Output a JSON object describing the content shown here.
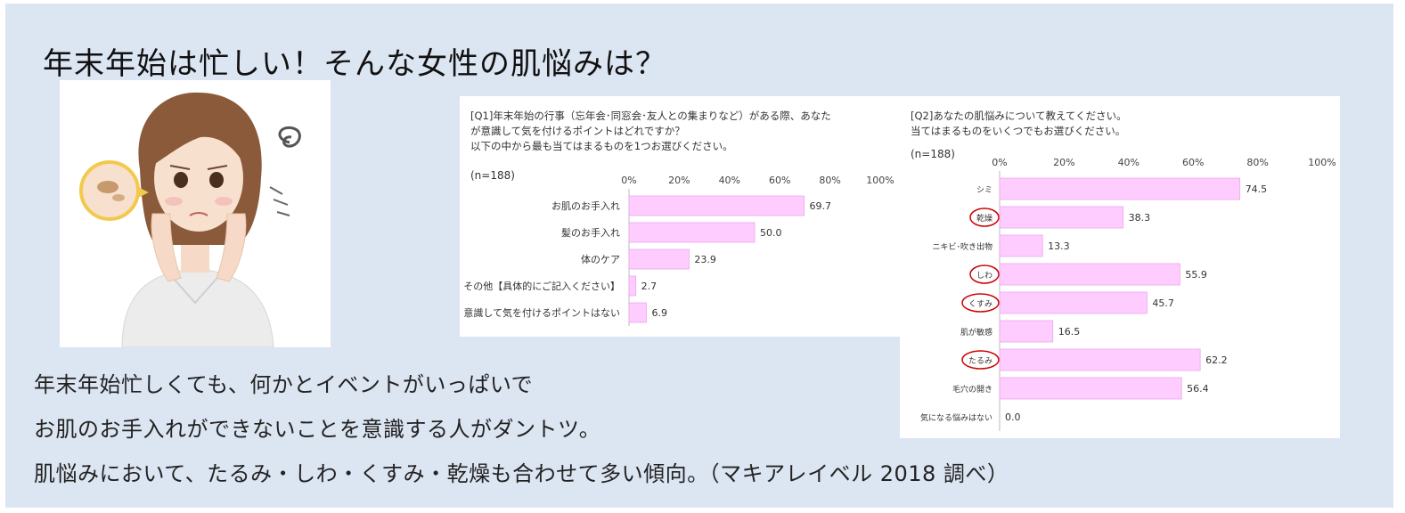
{
  "title": "年末年始は忙しい！そんな女性の肌悩みは？",
  "body_lines": [
    "年末年始忙しくても、何かとイベントがいっぱいで",
    "お肌のお手入れができないことを意識する人がダントツ。",
    "肌悩みにおいて、たるみ・しわ・くすみ・乾燥も合わせて多い傾向。（マキアレイベル 2018 調べ）"
  ],
  "colors": {
    "bar_fill": "#ffccff",
    "bar_stroke": "#e8a8e8",
    "circle": "#cc0000",
    "slide_bg": "#dce5f2"
  },
  "chart_data": [
    {
      "type": "bar",
      "orientation": "horizontal",
      "question_lines": [
        "[Q1]年末年始の行事（忘年会･同窓会･友人との集まりなど）がある際、あなた",
        "が意識して気を付けるポイントはどれですか？",
        "以下の中から最も当てはまるものを1つお選びください。"
      ],
      "n_label": "(n=188)",
      "categories": [
        "お肌のお手入れ",
        "髪のお手入れ",
        "体のケア",
        "その他【具体的にご記入ください】",
        "意識して気を付けるポイントはない"
      ],
      "values": [
        69.7,
        50.0,
        23.9,
        2.7,
        6.9
      ],
      "value_labels": [
        "69.7",
        "50.0",
        "23.9",
        "2.7",
        "6.9"
      ],
      "xlim": [
        0,
        100
      ],
      "ticks": [
        "0%",
        "20%",
        "40%",
        "60%",
        "80%",
        "100%"
      ]
    },
    {
      "type": "bar",
      "orientation": "horizontal",
      "question_lines": [
        "[Q2]あなたの肌悩みについて教えてください。",
        "当てはまるものをいくつでもお選びください。"
      ],
      "n_label": "(n=188)",
      "categories": [
        "シミ",
        "乾燥",
        "ニキビ･吹き出物",
        "しわ",
        "くすみ",
        "肌が敏感",
        "たるみ",
        "毛穴の開き",
        "気になる悩みはない"
      ],
      "values": [
        74.5,
        38.3,
        13.3,
        55.9,
        45.7,
        16.5,
        62.2,
        56.4,
        0.0
      ],
      "value_labels": [
        "74.5",
        "38.3",
        "13.3",
        "55.9",
        "45.7",
        "16.5",
        "62.2",
        "56.4",
        "0.0"
      ],
      "circled": [
        "乾燥",
        "しわ",
        "くすみ",
        "たるみ"
      ],
      "xlim": [
        0,
        100
      ],
      "ticks": [
        "0%",
        "20%",
        "40%",
        "60%",
        "80%",
        "100%"
      ]
    }
  ]
}
